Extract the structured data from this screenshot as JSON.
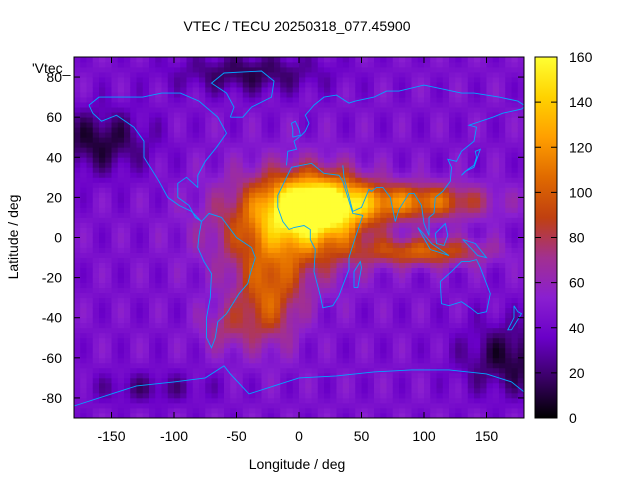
{
  "chart_data": {
    "type": "heatmap",
    "title": "VTEC / TECU 20250318_077.45900",
    "xlabel": "Longitude / deg",
    "ylabel": "Latitude / deg",
    "legend_entry": "'Vtec_",
    "xlim": [
      -180,
      180
    ],
    "ylim": [
      -90,
      90
    ],
    "x_ticks": [
      -150,
      -100,
      -50,
      0,
      50,
      100,
      150
    ],
    "y_ticks": [
      -80,
      -60,
      -40,
      -20,
      0,
      20,
      40,
      60,
      80
    ],
    "colorbar": {
      "range": [
        0,
        160
      ],
      "ticks": [
        0,
        20,
        40,
        60,
        80,
        100,
        120,
        140,
        160
      ],
      "palette": [
        "#000000",
        "#3a0066",
        "#6a00c8",
        "#8a1fd0",
        "#a23090",
        "#c04010",
        "#e06a00",
        "#ff9f00",
        "#ffd200",
        "#ffff33"
      ]
    },
    "features": [
      {
        "name": "peak-africa",
        "lon": 15,
        "lat": 18,
        "value": 150
      },
      {
        "name": "equatorial-band-asia",
        "lon": 90,
        "lat": 15,
        "value": 110
      },
      {
        "name": "southern-band-indian-ocean",
        "lon": 100,
        "lat": -8,
        "value": 90
      },
      {
        "name": "south-atlantic",
        "lon": -20,
        "lat": -35,
        "value": 85
      },
      {
        "name": "background",
        "value": 45
      }
    ],
    "coastline_color": "#00a6ff"
  }
}
